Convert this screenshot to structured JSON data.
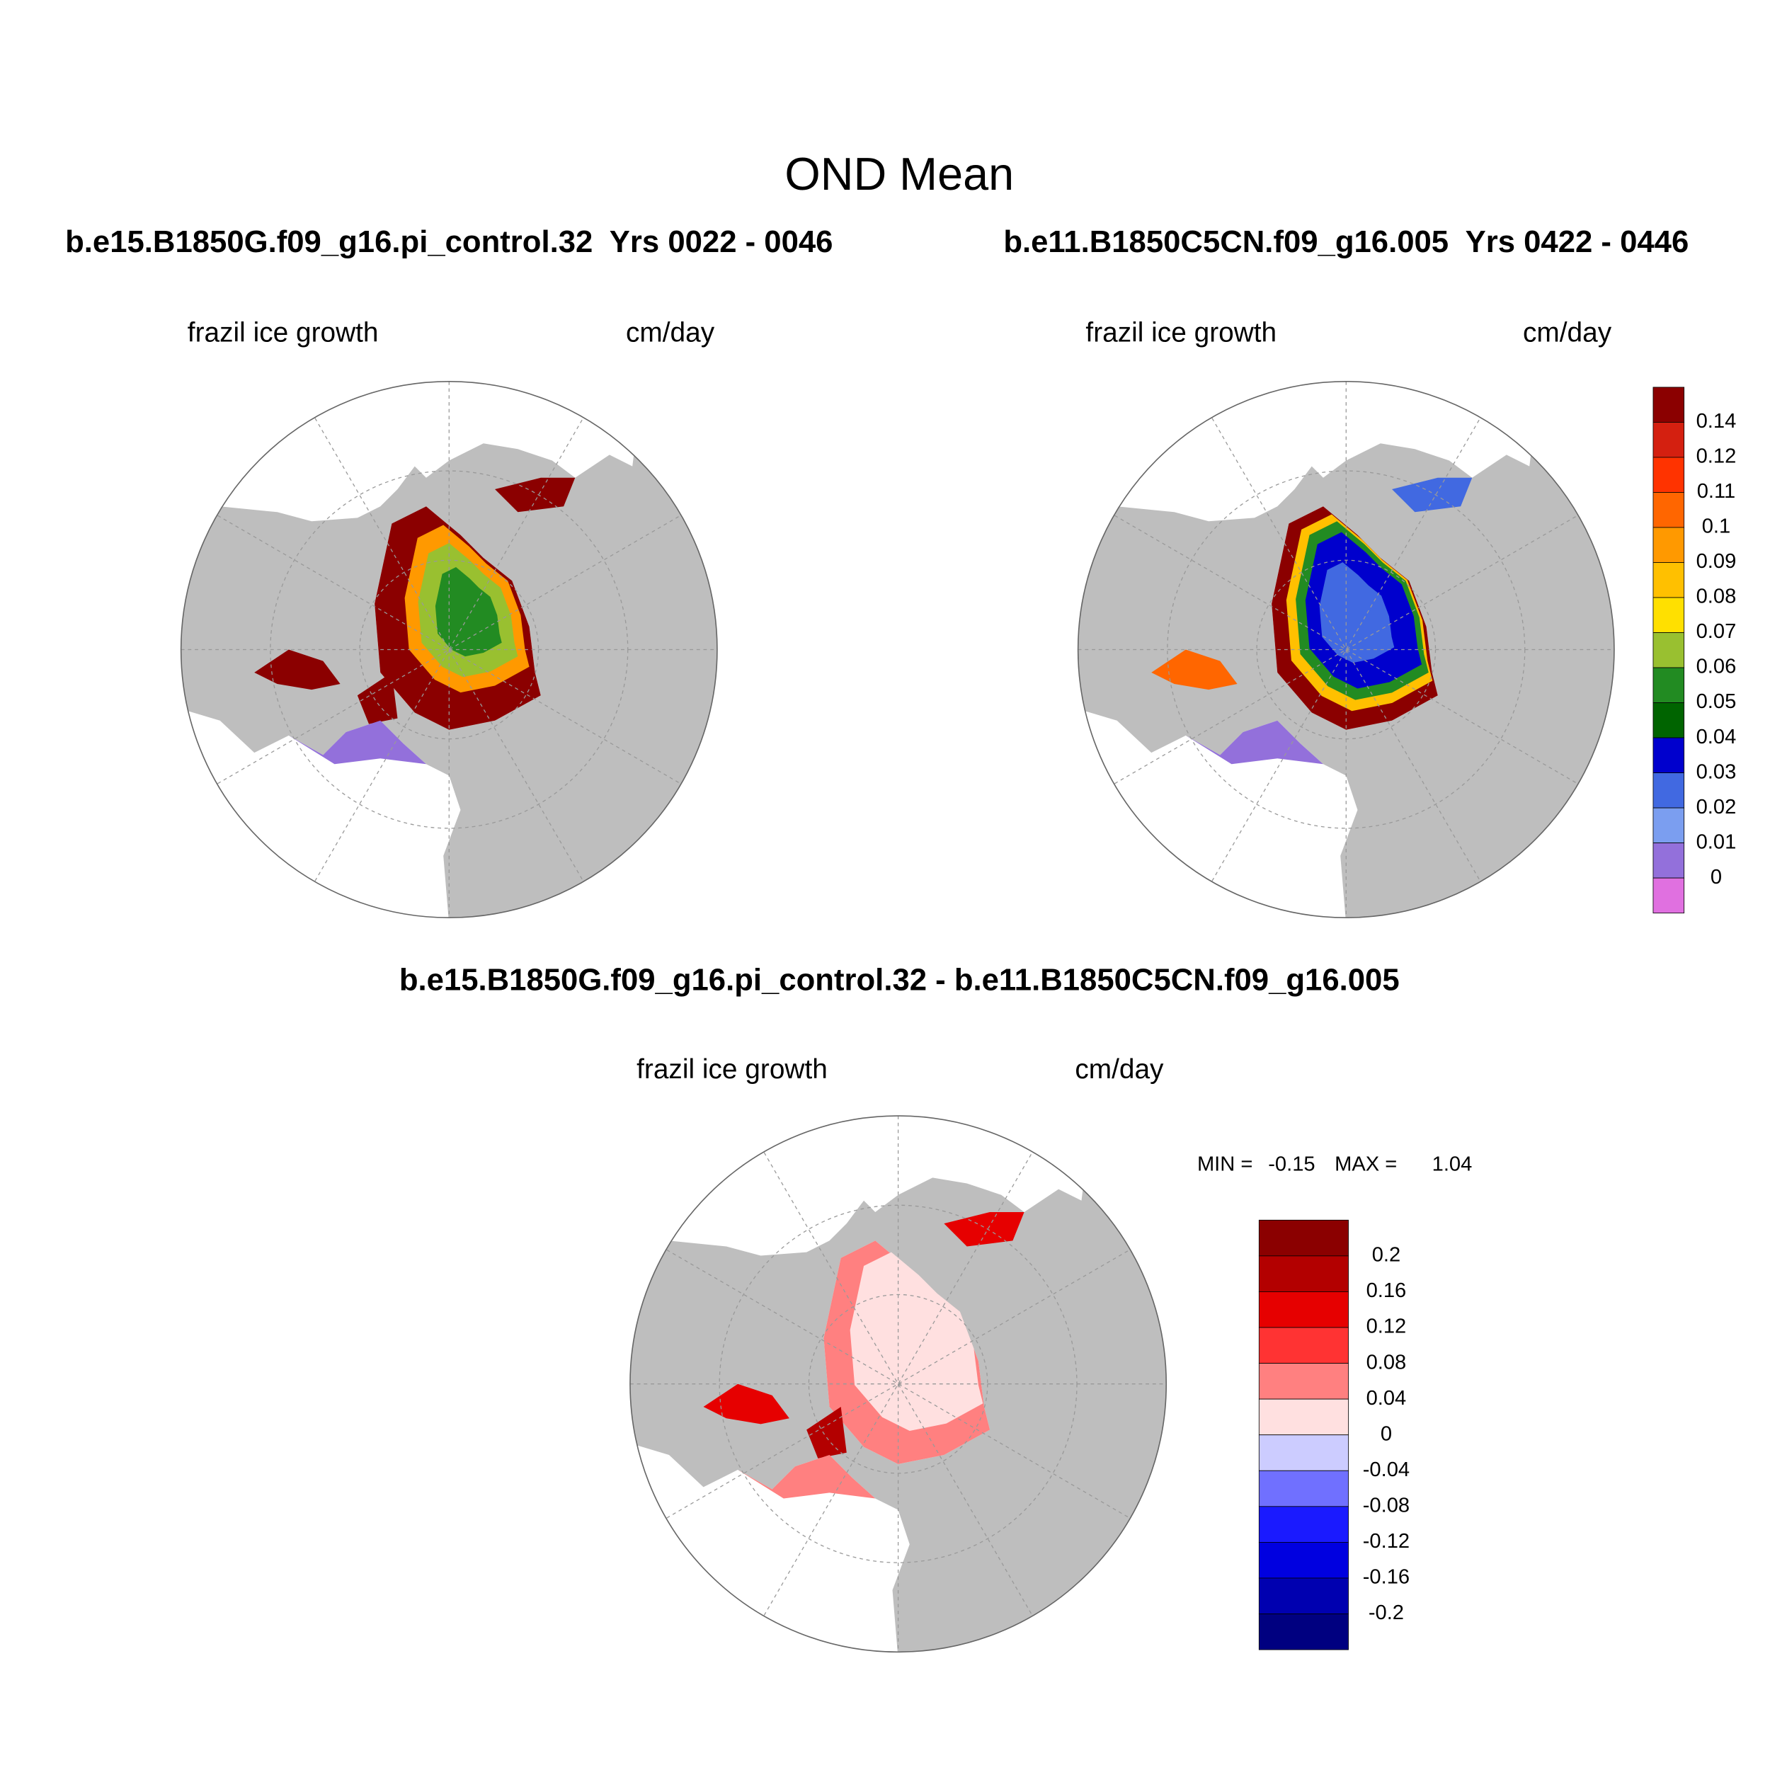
{
  "title": "OND Mean",
  "panels": [
    {
      "title": "b.e15.B1850G.f09_g16.pi_control.32  Yrs 0022 - 0046",
      "field": "frazil ice growth",
      "units": "cm/day"
    },
    {
      "title": "b.e11.B1850C5CN.f09_g16.005  Yrs 0422 - 0446",
      "field": "frazil ice growth",
      "units": "cm/day"
    },
    {
      "title": "b.e15.B1850G.f09_g16.pi_control.32 - b.e11.B1850C5CN.f09_g16.005",
      "field": "frazil ice growth",
      "units": "cm/day"
    }
  ],
  "colorbars": [
    {
      "labels": [
        0.14,
        0.12,
        0.11,
        0.1,
        0.09,
        0.08,
        0.07,
        0.06,
        0.05,
        0.04,
        0.03,
        0.02,
        0.01,
        0
      ],
      "colors": [
        "#8b0000",
        "#d42010",
        "#ff3300",
        "#ff6600",
        "#ff9900",
        "#ffc000",
        "#ffe000",
        "#99c030",
        "#228b22",
        "#006400",
        "#0000cd",
        "#4169e1",
        "#7b9ef0",
        "#9370db",
        "#e070e0"
      ]
    },
    {
      "labels": [
        0.2,
        0.16,
        0.12,
        0.08,
        0.04,
        0,
        -0.04,
        -0.08,
        -0.12,
        -0.16,
        -0.2
      ],
      "colors": [
        "#8b0000",
        "#b30000",
        "#e60000",
        "#ff3333",
        "#ff8080",
        "#ffe0e0",
        "#ccccff",
        "#7070ff",
        "#1a1aff",
        "#0000e0",
        "#0000b0",
        "#000080"
      ]
    }
  ],
  "stats": {
    "min_label": "MIN =",
    "min": -0.15,
    "max_label": "MAX =",
    "max": 1.04
  }
}
